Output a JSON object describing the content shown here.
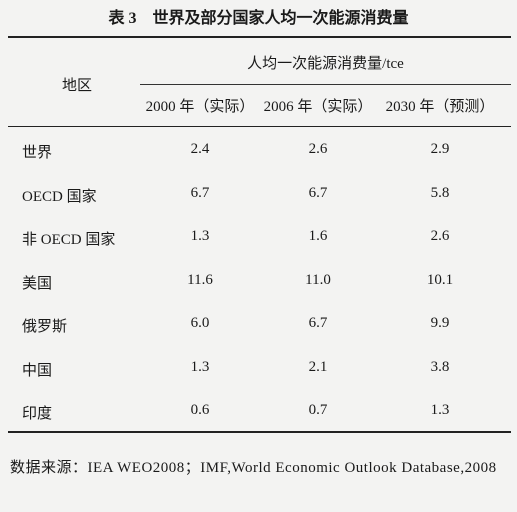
{
  "header": {
    "title": "表 3　世界及部分国家人均一次能源消费量"
  },
  "table": {
    "region_header": "地区",
    "group_header": "人均一次能源消费量/tce",
    "columns": [
      "2000 年（实际）",
      "2006 年（实际）",
      "2030 年（预测）"
    ],
    "rows": [
      [
        "世界",
        "2.4",
        "2.6",
        "2.9"
      ],
      [
        "OECD 国家",
        "6.7",
        "6.7",
        "5.8"
      ],
      [
        "非 OECD 国家",
        "1.3",
        "1.6",
        "2.6"
      ],
      [
        "美国",
        "11.6",
        "11.0",
        "10.1"
      ],
      [
        "俄罗斯",
        "6.0",
        "6.7",
        "9.9"
      ],
      [
        "中国",
        "1.3",
        "2.1",
        "3.8"
      ],
      [
        "印度",
        "0.6",
        "0.7",
        "1.3"
      ]
    ]
  },
  "note": "数据来源：IEA WEO2008；IMF,World Economic Outlook Database,2008"
}
